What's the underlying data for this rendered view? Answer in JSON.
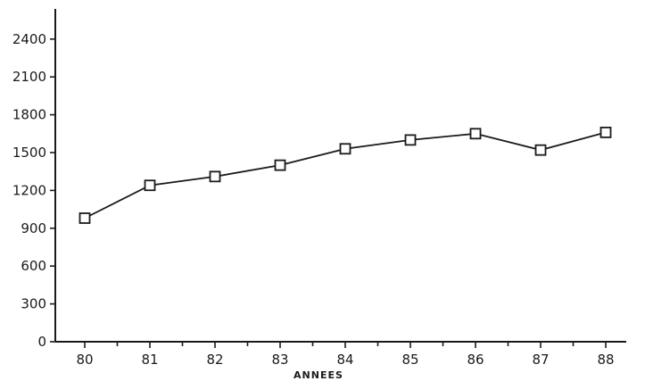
{
  "chart_data": {
    "type": "line",
    "title": "",
    "xlabel": "ANNEES",
    "ylabel": "",
    "categories": [
      "80",
      "81",
      "82",
      "83",
      "84",
      "85",
      "86",
      "87",
      "88"
    ],
    "series": [
      {
        "values": [
          980,
          1240,
          1310,
          1400,
          1530,
          1600,
          1650,
          1520,
          1660
        ]
      }
    ],
    "yticks": [
      "0",
      "300",
      "600",
      "900",
      "1200",
      "1500",
      "1800",
      "2100",
      "2400"
    ],
    "ylim": [
      0,
      2500
    ],
    "grid": false,
    "marker": "square",
    "colors": {
      "ink": "#1a1a1a",
      "background": "#ffffff"
    }
  }
}
